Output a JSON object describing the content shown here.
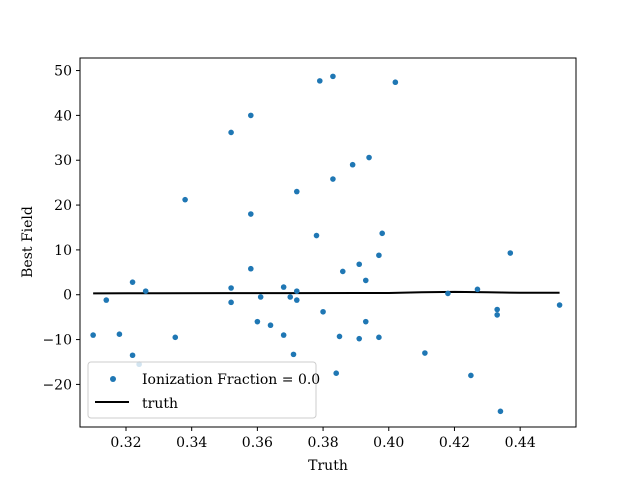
{
  "chart_data": {
    "type": "scatter",
    "xlabel": "Truth",
    "ylabel": "Best Field",
    "xlim": [
      0.306,
      0.457
    ],
    "ylim": [
      -29.5,
      52.8
    ],
    "xticks": [
      0.32,
      0.34,
      0.36,
      0.38,
      0.4,
      0.42,
      0.44
    ],
    "xtick_labels": [
      "0.32",
      "0.34",
      "0.36",
      "0.38",
      "0.40",
      "0.42",
      "0.44"
    ],
    "yticks": [
      -20,
      -10,
      0,
      10,
      20,
      30,
      40,
      50
    ],
    "ytick_labels": [
      "−20",
      "−10",
      "0",
      "10",
      "20",
      "30",
      "40",
      "50"
    ],
    "grid": false,
    "legend_position": "lower-left",
    "series": [
      {
        "name": "Ionization Fraction = 0.0",
        "kind": "scatter",
        "color": "#1f77b4",
        "points": [
          [
            0.31,
            -9.0
          ],
          [
            0.314,
            -1.2
          ],
          [
            0.318,
            -8.8
          ],
          [
            0.322,
            2.8
          ],
          [
            0.322,
            -13.5
          ],
          [
            0.324,
            -15.5
          ],
          [
            0.326,
            0.8
          ],
          [
            0.335,
            -9.5
          ],
          [
            0.338,
            21.2
          ],
          [
            0.352,
            36.2
          ],
          [
            0.352,
            1.5
          ],
          [
            0.352,
            -1.7
          ],
          [
            0.358,
            40.0
          ],
          [
            0.358,
            18.0
          ],
          [
            0.358,
            5.8
          ],
          [
            0.36,
            -6.0
          ],
          [
            0.361,
            -0.5
          ],
          [
            0.364,
            -6.8
          ],
          [
            0.368,
            1.7
          ],
          [
            0.368,
            -9.0
          ],
          [
            0.37,
            -0.5
          ],
          [
            0.371,
            -13.3
          ],
          [
            0.372,
            23.0
          ],
          [
            0.372,
            0.8
          ],
          [
            0.372,
            -1.2
          ],
          [
            0.378,
            13.2
          ],
          [
            0.379,
            47.7
          ],
          [
            0.38,
            -3.8
          ],
          [
            0.383,
            48.7
          ],
          [
            0.383,
            25.8
          ],
          [
            0.384,
            -17.5
          ],
          [
            0.385,
            -9.3
          ],
          [
            0.386,
            5.2
          ],
          [
            0.389,
            29.0
          ],
          [
            0.391,
            6.8
          ],
          [
            0.391,
            -9.8
          ],
          [
            0.393,
            3.2
          ],
          [
            0.393,
            -6.0
          ],
          [
            0.394,
            30.6
          ],
          [
            0.397,
            8.8
          ],
          [
            0.397,
            -9.5
          ],
          [
            0.398,
            13.7
          ],
          [
            0.402,
            47.4
          ],
          [
            0.411,
            -13.0
          ],
          [
            0.418,
            0.3
          ],
          [
            0.425,
            -18.0
          ],
          [
            0.427,
            1.2
          ],
          [
            0.433,
            -3.3
          ],
          [
            0.433,
            -4.5
          ],
          [
            0.434,
            -26.0
          ],
          [
            0.437,
            9.3
          ],
          [
            0.452,
            -2.3
          ]
        ]
      },
      {
        "name": "truth",
        "kind": "line",
        "color": "#000000",
        "points": [
          [
            0.31,
            0.31
          ],
          [
            0.33,
            0.33
          ],
          [
            0.35,
            0.35
          ],
          [
            0.37,
            0.37
          ],
          [
            0.39,
            0.39
          ],
          [
            0.4,
            0.4
          ],
          [
            0.41,
            0.55
          ],
          [
            0.42,
            0.65
          ],
          [
            0.43,
            0.55
          ],
          [
            0.44,
            0.44
          ],
          [
            0.452,
            0.45
          ]
        ]
      }
    ]
  }
}
